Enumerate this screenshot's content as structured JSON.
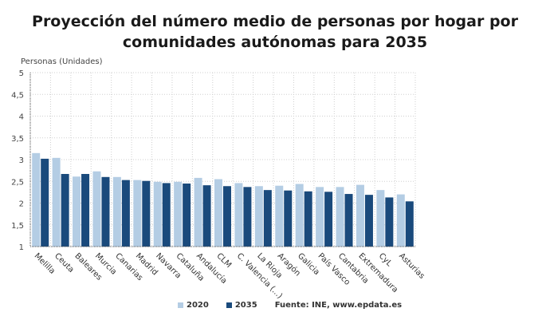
{
  "chart_data": {
    "type": "bar",
    "title": "Proyección del número medio de personas por hogar por comunidades autónomas para 2035",
    "ylabel": "Personas (Unidades)",
    "xlabel": "",
    "ylim": [
      1,
      5
    ],
    "yticks": [
      1,
      1.5,
      2,
      2.5,
      3,
      3.5,
      4,
      4.5,
      5
    ],
    "ytick_labels": [
      "1",
      "1,5",
      "2",
      "2,5",
      "3",
      "3,5",
      "4",
      "4,5",
      "5"
    ],
    "grid": true,
    "legend_position": "bottom",
    "categories": [
      "Melilla",
      "Ceuta",
      "Baleares",
      "Murcia",
      "Canarias",
      "Madrid",
      "Navarra",
      "Cataluña",
      "Andalucía",
      "CLM",
      "C. Valencia (...)",
      "La Rioja",
      "Aragón",
      "Galicia",
      "País Vasco",
      "Cantabria",
      "Extremadura",
      "CyL",
      "Asturias"
    ],
    "series": [
      {
        "name": "2020",
        "color": "#b4cde4",
        "values": [
          3.15,
          3.04,
          2.61,
          2.73,
          2.6,
          2.53,
          2.49,
          2.49,
          2.58,
          2.55,
          2.46,
          2.39,
          2.4,
          2.44,
          2.37,
          2.37,
          2.42,
          2.3,
          2.2
        ]
      },
      {
        "name": "2035",
        "color": "#1a4a7c",
        "values": [
          3.02,
          2.67,
          2.67,
          2.6,
          2.53,
          2.51,
          2.46,
          2.45,
          2.41,
          2.39,
          2.37,
          2.3,
          2.29,
          2.27,
          2.26,
          2.21,
          2.19,
          2.13,
          2.04
        ]
      }
    ],
    "source": "Fuente: INE, www.epdata.es"
  }
}
